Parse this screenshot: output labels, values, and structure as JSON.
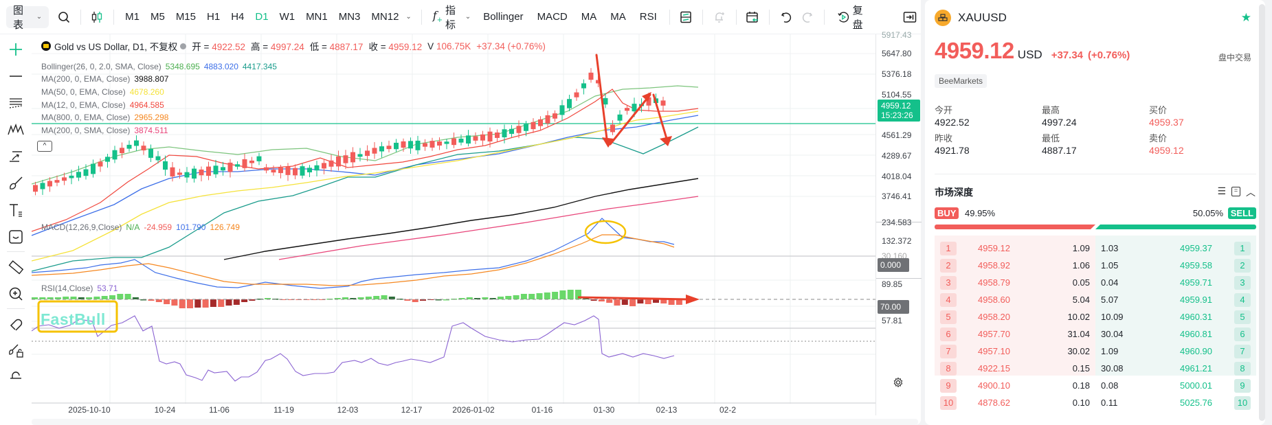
{
  "toolbar": {
    "chart_menu": "图表",
    "timeframes": [
      "M1",
      "M5",
      "M15",
      "H1",
      "H4",
      "D1",
      "W1",
      "MN1",
      "MN3",
      "MN12"
    ],
    "active_timeframe": "D1",
    "indicators_label": "指标",
    "quick_indicators": [
      "Bollinger",
      "MACD",
      "MA",
      "MA",
      "RSI"
    ],
    "replay_label": "复盘"
  },
  "left_tools": [
    "crosshair-icon",
    "horizontal-line-icon",
    "channel-icon",
    "pattern-icon",
    "trend-arrow-icon",
    "brush-icon",
    "text-icon",
    "emoji-icon",
    "ruler-icon",
    "zoom-in-icon",
    "magnet-icon",
    "lock-drawings-icon",
    "lock-icon"
  ],
  "legend": {
    "symbol": "Gold vs US Dollar, D1, 不复权",
    "ohlc": [
      {
        "label": "开 =",
        "value": "4922.52"
      },
      {
        "label": "高 =",
        "value": "4997.24"
      },
      {
        "label": "低 =",
        "value": "4887.17"
      },
      {
        "label": "收 =",
        "value": "4959.12"
      },
      {
        "label": "V",
        "value": "106.75K"
      }
    ],
    "change": "+37.34 (+0.76%)",
    "indicators": [
      {
        "name": "Bollinger(26, 0, 2.0, SMA, Close)",
        "values": [
          {
            "v": "5348.695",
            "c": "#4caf50"
          },
          {
            "v": "4883.020",
            "c": "#3d6fe8"
          },
          {
            "v": "4417.345",
            "c": "#1a9c8c"
          }
        ]
      },
      {
        "name": "MA(200, 0, EMA, Close)",
        "values": [
          {
            "v": "3988.807",
            "c": "#111111"
          }
        ]
      },
      {
        "name": "MA(50, 0, EMA, Close)",
        "values": [
          {
            "v": "4678.260",
            "c": "#f5e23a"
          }
        ]
      },
      {
        "name": "MA(12, 0, EMA, Close)",
        "values": [
          {
            "v": "4964.585",
            "c": "#f0473d"
          }
        ]
      },
      {
        "name": "MA(800, 0, EMA, Close)",
        "values": [
          {
            "v": "2965.298",
            "c": "#f5871f"
          }
        ]
      },
      {
        "name": "MA(200, 0, SMA, Close)",
        "values": [
          {
            "v": "3874.511",
            "c": "#e8457a"
          }
        ]
      }
    ],
    "macd": {
      "name": "MACD(12,26,9,Close)",
      "values": [
        {
          "v": "N/A",
          "c": "#4caf50"
        },
        {
          "v": "-24.959",
          "c": "#f25d5a"
        },
        {
          "v": "101.790",
          "c": "#3d6fe8"
        },
        {
          "v": "126.749",
          "c": "#f5871f"
        }
      ]
    },
    "rsi": {
      "name": "RSI(14,Close)",
      "value": "53.71"
    }
  },
  "y_axis": {
    "price": [
      "5917.43",
      "5647.80",
      "5376.18",
      "5104.55",
      "4561.29",
      "4289.67",
      "4018.04",
      "3746.41"
    ],
    "current_price": "4959.12",
    "countdown": "15:23:26",
    "macd": [
      "234.583",
      "132.372",
      "30.160"
    ],
    "macd_zero": "0.000",
    "rsi": [
      "89.85",
      "57.81"
    ],
    "rsi_level": "70.00"
  },
  "x_axis": [
    "2025-10-10",
    "10-24",
    "11-06",
    "11-19",
    "12-03",
    "12-17",
    "2026-01-02",
    "01-16",
    "01-30",
    "02-13",
    "02-2"
  ],
  "watermark": "FastBull",
  "quote": {
    "symbol": "XAUUSD",
    "price": "4959.12",
    "currency": "USD",
    "change": "+37.34",
    "change_pct": "(+0.76%)",
    "session": "盘中交易",
    "broker": "BeeMarkets",
    "stats": [
      {
        "label": "今开",
        "value": "4922.52",
        "red": false
      },
      {
        "label": "最高",
        "value": "4997.24",
        "red": false
      },
      {
        "label": "买价",
        "value": "4959.37",
        "red": true
      },
      {
        "label": "昨收",
        "value": "4921.78",
        "red": false
      },
      {
        "label": "最低",
        "value": "4887.17",
        "red": false
      },
      {
        "label": "卖价",
        "value": "4959.12",
        "red": true
      }
    ]
  },
  "depth": {
    "title": "市场深度",
    "buy_label": "BUY",
    "buy_pct": "49.95%",
    "sell_label": "SELL",
    "sell_pct": "50.05%",
    "bids": [
      {
        "n": "1",
        "price": "4959.12",
        "qty": "1.09"
      },
      {
        "n": "2",
        "price": "4958.92",
        "qty": "1.06"
      },
      {
        "n": "3",
        "price": "4958.79",
        "qty": "0.05"
      },
      {
        "n": "4",
        "price": "4958.60",
        "qty": "5.04"
      },
      {
        "n": "5",
        "price": "4958.20",
        "qty": "10.02"
      },
      {
        "n": "6",
        "price": "4957.70",
        "qty": "31.04"
      },
      {
        "n": "7",
        "price": "4957.10",
        "qty": "30.02"
      },
      {
        "n": "8",
        "price": "4922.15",
        "qty": "0.15"
      },
      {
        "n": "9",
        "price": "4900.10",
        "qty": "0.18"
      },
      {
        "n": "10",
        "price": "4878.62",
        "qty": "0.10"
      }
    ],
    "asks": [
      {
        "n": "1",
        "price": "4959.37",
        "qty": "1.03"
      },
      {
        "n": "2",
        "price": "4959.58",
        "qty": "1.05"
      },
      {
        "n": "3",
        "price": "4959.71",
        "qty": "0.04"
      },
      {
        "n": "4",
        "price": "4959.91",
        "qty": "5.07"
      },
      {
        "n": "5",
        "price": "4960.31",
        "qty": "10.09"
      },
      {
        "n": "6",
        "price": "4960.81",
        "qty": "30.04"
      },
      {
        "n": "7",
        "price": "4960.90",
        "qty": "1.09"
      },
      {
        "n": "8",
        "price": "4961.21",
        "qty": "30.08"
      },
      {
        "n": "9",
        "price": "5000.01",
        "qty": "0.08"
      },
      {
        "n": "10",
        "price": "5025.76",
        "qty": "0.11"
      }
    ]
  }
}
